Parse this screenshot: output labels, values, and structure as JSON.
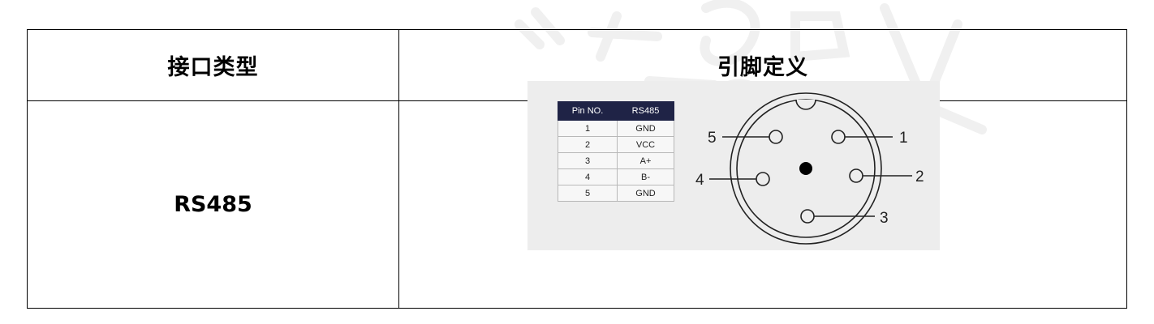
{
  "table": {
    "headers": [
      "接口类型",
      "引脚定义"
    ],
    "rows": [
      {
        "interface_type": "RS485"
      }
    ]
  },
  "pin_definition": {
    "headers": [
      "Pin NO.",
      "RS485"
    ],
    "rows": [
      [
        "1",
        "GND"
      ],
      [
        "2",
        "VCC"
      ],
      [
        "3",
        "A+"
      ],
      [
        "4",
        "B-"
      ],
      [
        "5",
        "GND"
      ]
    ]
  },
  "connector": {
    "pin_labels": [
      "1",
      "2",
      "3",
      "4",
      "5"
    ]
  },
  "colors": {
    "pin_table_header_bg": "#1f2346",
    "figure_bg": "#ededed",
    "border": "#000000"
  }
}
